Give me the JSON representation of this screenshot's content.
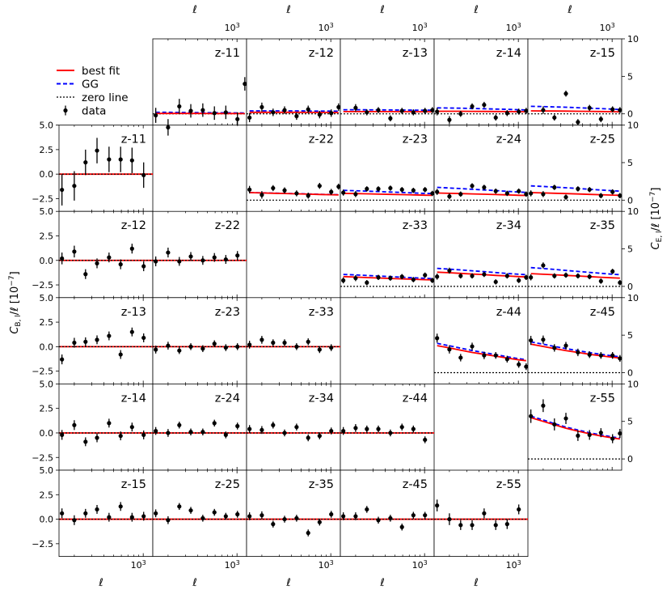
{
  "figure": {
    "n_zbins": 5,
    "pair_labels": [
      "z-11",
      "z-12",
      "z-13",
      "z-14",
      "z-15",
      "z-22",
      "z-23",
      "z-24",
      "z-25",
      "z-33",
      "z-34",
      "z-35",
      "z-44",
      "z-45",
      "z-55"
    ],
    "legend": {
      "best_fit": "best fit",
      "gg": "GG",
      "zero_line": "zero line",
      "data": "data"
    },
    "x_axis": {
      "label": "ℓ",
      "tick_base": "10",
      "tick_exp": "3",
      "scale": "log",
      "range": [
        140,
        1250
      ]
    },
    "left_axis": {
      "label_main": "C",
      "label_sub": "B, l",
      "label_rest": "/ℓ [10",
      "label_exp": "−7",
      "label_end": "]",
      "range": [
        -3.8,
        5.0
      ],
      "ticks": [
        "5.0",
        "2.5",
        "0.0",
        "−2.5"
      ],
      "tick_values": [
        5.0,
        2.5,
        0.0,
        -2.5
      ]
    },
    "right_axis": {
      "label_main": "C",
      "label_sub": "E, l",
      "label_rest": "/ℓ [10",
      "label_exp": "−7",
      "label_end": "]",
      "range": [
        -1.5,
        10
      ],
      "ticks": [
        "10",
        "5",
        "0"
      ],
      "tick_values": [
        10,
        5,
        0
      ]
    },
    "colors": {
      "best_fit": "#ff0000",
      "gg": "#0000ff",
      "data": "#000000",
      "zero_line": "#000000"
    }
  },
  "chart_data": {
    "type": "scatter",
    "title": "",
    "xlabel": "ℓ",
    "ell": [
      150,
      200,
      260,
      340,
      450,
      590,
      770,
      1010,
      1200
    ],
    "e_mode": [
      {
        "pair": "z-11",
        "values": [
          -0.2,
          -1.8,
          1.0,
          0.4,
          0.5,
          0.1,
          0.2,
          -0.7,
          4.0
        ],
        "errors": [
          1.0,
          1.1,
          1.0,
          0.9,
          0.9,
          0.9,
          0.9,
          0.9,
          0.9
        ],
        "best_fit": [
          0.05,
          0.05,
          0.05,
          0.05,
          0.05,
          0.04,
          0.04,
          0.04,
          0.03
        ],
        "gg": [
          0.2,
          0.2,
          0.18,
          0.17,
          0.16,
          0.15,
          0.14,
          0.13,
          0.12
        ]
      },
      {
        "pair": "z-12",
        "values": [
          -0.5,
          0.9,
          0.2,
          0.5,
          -0.3,
          0.6,
          -0.1,
          0.1,
          0.9
        ],
        "errors": [
          0.6,
          0.6,
          0.5,
          0.5,
          0.5,
          0.5,
          0.5,
          0.5,
          0.5
        ],
        "best_fit": [
          0.2,
          0.2,
          0.2,
          0.2,
          0.2,
          0.19,
          0.19,
          0.18,
          0.18
        ],
        "gg": [
          0.4,
          0.4,
          0.4,
          0.4,
          0.4,
          0.38,
          0.37,
          0.37,
          0.36
        ]
      },
      {
        "pair": "z-13",
        "values": [
          -2.2,
          0.8,
          0.2,
          0.5,
          -0.6,
          0.4,
          0.2,
          0.4,
          0.5
        ],
        "errors": [
          0.5,
          0.5,
          0.4,
          0.4,
          0.4,
          0.4,
          0.4,
          0.4,
          0.4
        ],
        "best_fit": [
          0.3,
          0.3,
          0.3,
          0.3,
          0.3,
          0.29,
          0.29,
          0.28,
          0.28
        ],
        "gg": [
          0.55,
          0.55,
          0.54,
          0.53,
          0.52,
          0.51,
          0.5,
          0.49,
          0.48
        ]
      },
      {
        "pair": "z-14",
        "values": [
          0.3,
          -0.8,
          0.0,
          1.0,
          1.2,
          -0.5,
          0.1,
          0.3,
          0.4
        ],
        "errors": [
          0.5,
          0.5,
          0.4,
          0.4,
          0.4,
          0.4,
          0.4,
          0.4,
          0.4
        ],
        "best_fit": [
          0.35,
          0.35,
          0.34,
          0.33,
          0.32,
          0.31,
          0.3,
          0.29,
          0.28
        ],
        "gg": [
          0.8,
          0.78,
          0.75,
          0.72,
          0.68,
          0.64,
          0.6,
          0.55,
          0.52
        ]
      },
      {
        "pair": "z-15",
        "values": [
          -2.1,
          0.5,
          -0.5,
          2.7,
          -1.1,
          0.8,
          -0.7,
          0.6,
          0.5
        ],
        "errors": [
          0.5,
          0.5,
          0.4,
          0.4,
          0.4,
          0.4,
          0.4,
          0.4,
          0.4
        ],
        "best_fit": [
          0.4,
          0.39,
          0.38,
          0.37,
          0.35,
          0.33,
          0.31,
          0.29,
          0.27
        ],
        "gg": [
          1.0,
          0.97,
          0.93,
          0.88,
          0.82,
          0.76,
          0.7,
          0.63,
          0.58
        ]
      },
      {
        "pair": "z-22",
        "values": [
          1.4,
          0.7,
          1.6,
          1.3,
          0.9,
          0.6,
          1.9,
          1.1,
          1.8
        ],
        "errors": [
          0.5,
          0.5,
          0.4,
          0.4,
          0.4,
          0.4,
          0.4,
          0.4,
          0.4
        ],
        "best_fit": [
          1.0,
          0.96,
          0.92,
          0.88,
          0.84,
          0.8,
          0.76,
          0.72,
          0.7
        ],
        "gg": [
          1.0,
          0.97,
          0.94,
          0.9,
          0.86,
          0.82,
          0.78,
          0.74,
          0.72
        ]
      },
      {
        "pair": "z-23",
        "values": [
          1.0,
          0.8,
          1.5,
          1.5,
          1.6,
          1.4,
          1.3,
          1.4,
          0.9
        ],
        "errors": [
          0.4,
          0.4,
          0.35,
          0.35,
          0.35,
          0.35,
          0.35,
          0.35,
          0.35
        ],
        "best_fit": [
          0.9,
          0.87,
          0.84,
          0.8,
          0.77,
          0.73,
          0.7,
          0.66,
          0.64
        ],
        "gg": [
          1.3,
          1.25,
          1.2,
          1.14,
          1.08,
          1.02,
          0.96,
          0.9,
          0.87
        ]
      },
      {
        "pair": "z-24",
        "values": [
          1.1,
          0.5,
          0.8,
          1.9,
          1.7,
          1.2,
          0.9,
          1.2,
          0.8
        ],
        "errors": [
          0.4,
          0.4,
          0.35,
          0.35,
          0.35,
          0.35,
          0.35,
          0.35,
          0.35
        ],
        "best_fit": [
          0.95,
          0.91,
          0.87,
          0.83,
          0.79,
          0.74,
          0.7,
          0.65,
          0.63
        ],
        "gg": [
          1.7,
          1.62,
          1.54,
          1.45,
          1.36,
          1.27,
          1.18,
          1.08,
          1.03
        ]
      },
      {
        "pair": "z-25",
        "values": [
          0.9,
          0.8,
          1.7,
          0.4,
          1.5,
          1.4,
          0.6,
          1.1,
          0.6
        ],
        "errors": [
          0.4,
          0.4,
          0.35,
          0.35,
          0.35,
          0.35,
          0.35,
          0.35,
          0.35
        ],
        "best_fit": [
          1.0,
          0.96,
          0.92,
          0.87,
          0.82,
          0.77,
          0.72,
          0.67,
          0.65
        ],
        "gg": [
          1.9,
          1.82,
          1.74,
          1.65,
          1.55,
          1.45,
          1.35,
          1.25,
          1.2
        ]
      },
      {
        "pair": "z-33",
        "values": [
          0.8,
          1.1,
          0.5,
          1.2,
          1.1,
          1.3,
          0.9,
          1.5,
          0.8
        ],
        "errors": [
          0.4,
          0.4,
          0.35,
          0.35,
          0.35,
          0.35,
          0.35,
          0.35,
          0.35
        ],
        "best_fit": [
          1.3,
          1.24,
          1.18,
          1.12,
          1.06,
          1.0,
          0.95,
          0.9,
          0.87
        ],
        "gg": [
          1.6,
          1.53,
          1.46,
          1.38,
          1.3,
          1.22,
          1.15,
          1.08,
          1.04
        ]
      },
      {
        "pair": "z-34",
        "values": [
          1.3,
          2.1,
          1.4,
          1.4,
          1.6,
          0.6,
          1.4,
          0.8,
          1.2
        ],
        "errors": [
          0.4,
          0.4,
          0.35,
          0.35,
          0.35,
          0.35,
          0.35,
          0.35,
          0.35
        ],
        "best_fit": [
          1.9,
          1.82,
          1.74,
          1.65,
          1.56,
          1.47,
          1.39,
          1.3,
          1.26
        ],
        "gg": [
          2.4,
          2.3,
          2.2,
          2.08,
          1.96,
          1.84,
          1.73,
          1.62,
          1.56
        ]
      },
      {
        "pair": "z-35",
        "values": [
          1.2,
          2.8,
          1.4,
          1.5,
          1.4,
          1.3,
          0.7,
          2.0,
          0.5
        ],
        "errors": [
          0.4,
          0.4,
          0.35,
          0.35,
          0.35,
          0.35,
          0.35,
          0.35,
          0.35
        ],
        "best_fit": [
          1.7,
          1.62,
          1.55,
          1.47,
          1.39,
          1.3,
          1.22,
          1.14,
          1.1
        ],
        "gg": [
          2.5,
          2.38,
          2.26,
          2.13,
          2.0,
          1.87,
          1.75,
          1.62,
          1.56
        ]
      },
      {
        "pair": "z-44",
        "values": [
          4.6,
          3.1,
          2.0,
          3.5,
          2.3,
          2.3,
          1.8,
          1.1,
          0.8
        ],
        "errors": [
          0.6,
          0.55,
          0.5,
          0.5,
          0.5,
          0.45,
          0.45,
          0.45,
          0.45
        ],
        "best_fit": [
          3.6,
          3.3,
          3.0,
          2.7,
          2.45,
          2.2,
          1.95,
          1.7,
          1.6
        ],
        "gg": [
          3.9,
          3.58,
          3.27,
          2.96,
          2.67,
          2.4,
          2.13,
          1.86,
          1.74
        ]
      },
      {
        "pair": "z-45",
        "values": [
          4.3,
          4.4,
          3.3,
          3.6,
          2.7,
          2.4,
          2.3,
          2.3,
          1.9
        ],
        "errors": [
          0.6,
          0.55,
          0.5,
          0.5,
          0.5,
          0.45,
          0.45,
          0.45,
          0.45
        ],
        "best_fit": [
          3.8,
          3.5,
          3.2,
          2.95,
          2.7,
          2.45,
          2.25,
          2.05,
          1.95
        ],
        "gg": [
          4.1,
          3.8,
          3.5,
          3.2,
          2.93,
          2.67,
          2.45,
          2.23,
          2.12
        ]
      },
      {
        "pair": "z-55",
        "values": [
          5.7,
          7.1,
          4.6,
          5.4,
          3.1,
          3.2,
          3.5,
          2.7,
          3.4
        ],
        "errors": [
          0.9,
          0.85,
          0.8,
          0.75,
          0.7,
          0.65,
          0.6,
          0.6,
          0.6
        ],
        "best_fit": [
          5.5,
          5.0,
          4.55,
          4.1,
          3.7,
          3.35,
          3.05,
          2.8,
          2.65
        ],
        "gg": [
          5.7,
          5.2,
          4.7,
          4.25,
          3.85,
          3.5,
          3.2,
          2.92,
          2.78
        ]
      }
    ],
    "b_mode": [
      {
        "pair": "z-11",
        "values": [
          -1.6,
          -1.2,
          1.2,
          2.4,
          1.5,
          1.5,
          1.4,
          -0.1
        ],
        "errors": [
          1.6,
          1.5,
          1.3,
          1.3,
          1.3,
          1.3,
          1.3,
          1.3
        ]
      },
      {
        "pair": "z-12",
        "values": [
          0.2,
          0.9,
          -1.4,
          -0.3,
          0.3,
          -0.4,
          1.2,
          -0.6
        ],
        "errors": [
          0.6,
          0.6,
          0.5,
          0.5,
          0.5,
          0.5,
          0.5,
          0.5
        ]
      },
      {
        "pair": "z-13",
        "values": [
          -1.3,
          0.4,
          0.5,
          0.7,
          1.1,
          -0.8,
          1.5,
          0.9
        ],
        "errors": [
          0.5,
          0.5,
          0.45,
          0.45,
          0.45,
          0.45,
          0.45,
          0.45
        ]
      },
      {
        "pair": "z-14",
        "values": [
          -0.2,
          0.8,
          -0.9,
          -0.5,
          1.0,
          -0.3,
          0.6,
          -0.2
        ],
        "errors": [
          0.5,
          0.5,
          0.45,
          0.45,
          0.45,
          0.45,
          0.45,
          0.45
        ]
      },
      {
        "pair": "z-15",
        "values": [
          0.6,
          -0.1,
          0.6,
          1.0,
          0.2,
          1.3,
          0.2,
          0.3
        ],
        "errors": [
          0.5,
          0.5,
          0.45,
          0.45,
          0.45,
          0.45,
          0.45,
          0.45
        ]
      },
      {
        "pair": "z-22",
        "values": [
          -0.1,
          0.8,
          -0.1,
          0.4,
          0.0,
          0.3,
          0.1,
          0.5
        ],
        "errors": [
          0.5,
          0.5,
          0.45,
          0.45,
          0.45,
          0.45,
          0.45,
          0.45
        ]
      },
      {
        "pair": "z-23",
        "values": [
          -0.3,
          0.1,
          -0.4,
          0.0,
          -0.2,
          0.3,
          -0.1,
          0.0
        ],
        "errors": [
          0.4,
          0.4,
          0.35,
          0.35,
          0.35,
          0.35,
          0.35,
          0.35
        ]
      },
      {
        "pair": "z-24",
        "values": [
          0.2,
          0.0,
          0.8,
          0.1,
          0.1,
          1.0,
          -0.2,
          0.7
        ],
        "errors": [
          0.4,
          0.4,
          0.35,
          0.35,
          0.35,
          0.35,
          0.35,
          0.35
        ]
      },
      {
        "pair": "z-25",
        "values": [
          0.6,
          -0.1,
          1.3,
          0.9,
          0.1,
          0.7,
          0.3,
          0.5
        ],
        "errors": [
          0.4,
          0.4,
          0.35,
          0.35,
          0.35,
          0.35,
          0.35,
          0.35
        ]
      },
      {
        "pair": "z-33",
        "values": [
          0.2,
          0.7,
          0.4,
          0.4,
          0.0,
          0.5,
          -0.3,
          -0.1
        ],
        "errors": [
          0.4,
          0.4,
          0.35,
          0.35,
          0.35,
          0.35,
          0.35,
          0.35
        ]
      },
      {
        "pair": "z-34",
        "values": [
          0.4,
          0.3,
          0.8,
          0.0,
          0.6,
          -0.5,
          -0.3,
          0.2
        ],
        "errors": [
          0.4,
          0.4,
          0.35,
          0.35,
          0.35,
          0.35,
          0.35,
          0.35
        ]
      },
      {
        "pair": "z-35",
        "values": [
          0.3,
          0.4,
          -0.5,
          0.0,
          0.1,
          -1.4,
          -0.3,
          0.5
        ],
        "errors": [
          0.4,
          0.4,
          0.35,
          0.35,
          0.35,
          0.35,
          0.35,
          0.35
        ]
      },
      {
        "pair": "z-44",
        "values": [
          0.2,
          0.5,
          0.4,
          0.4,
          0.0,
          0.6,
          0.4,
          -0.7
        ],
        "errors": [
          0.4,
          0.4,
          0.35,
          0.35,
          0.35,
          0.35,
          0.35,
          0.35
        ]
      },
      {
        "pair": "z-45",
        "values": [
          0.3,
          0.3,
          1.0,
          -0.1,
          0.1,
          -0.8,
          0.4,
          0.4
        ],
        "errors": [
          0.4,
          0.4,
          0.35,
          0.35,
          0.35,
          0.35,
          0.35,
          0.35
        ]
      },
      {
        "pair": "z-55",
        "values": [
          1.4,
          0.0,
          -0.6,
          -0.6,
          0.6,
          -0.6,
          -0.5,
          1.0
        ],
        "errors": [
          0.6,
          0.6,
          0.5,
          0.5,
          0.5,
          0.5,
          0.5,
          0.5
        ]
      }
    ]
  }
}
